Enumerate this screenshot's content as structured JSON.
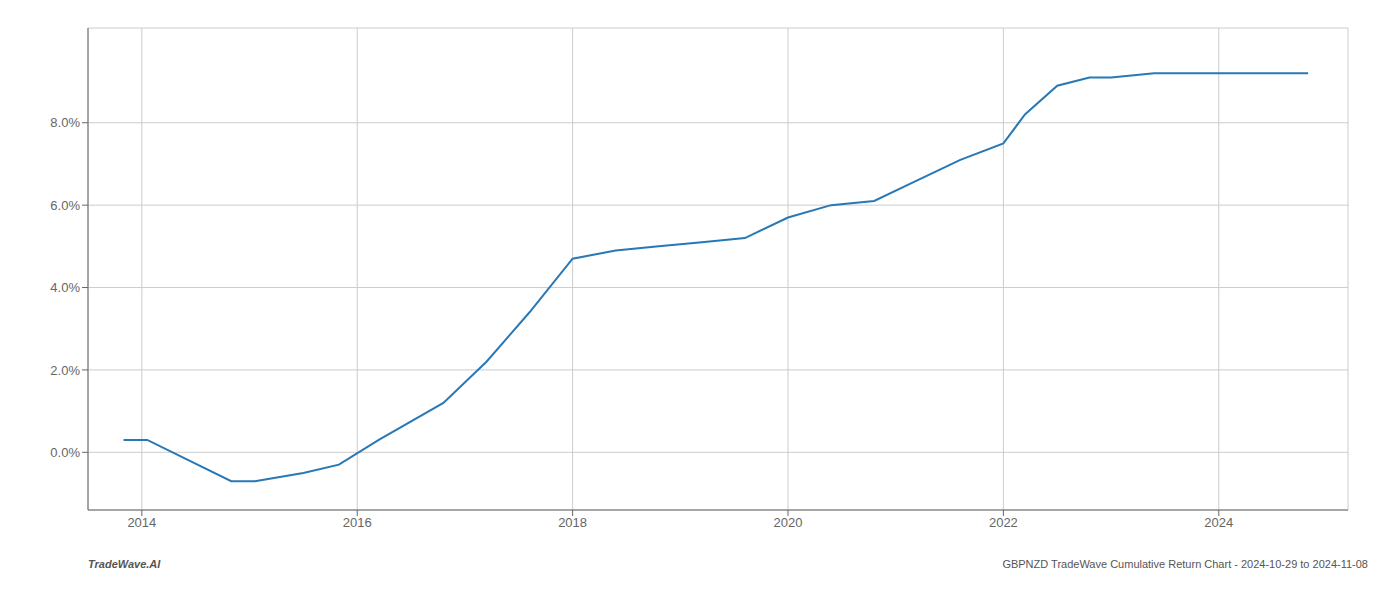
{
  "chart_data": {
    "type": "line",
    "x": [
      2013.83,
      2014.05,
      2014.83,
      2015.05,
      2015.5,
      2015.83,
      2016.2,
      2016.8,
      2017.2,
      2017.6,
      2018.0,
      2018.4,
      2018.8,
      2019.2,
      2019.6,
      2020.0,
      2020.4,
      2020.8,
      2021.2,
      2021.6,
      2022.0,
      2022.2,
      2022.5,
      2022.8,
      2023.0,
      2023.4,
      2023.8,
      2024.2,
      2024.83
    ],
    "values": [
      0.003,
      0.003,
      -0.007,
      -0.007,
      -0.005,
      -0.003,
      0.003,
      0.012,
      0.022,
      0.034,
      0.047,
      0.049,
      0.05,
      0.051,
      0.052,
      0.057,
      0.06,
      0.061,
      0.066,
      0.071,
      0.075,
      0.082,
      0.089,
      0.091,
      0.091,
      0.092,
      0.092,
      0.092,
      0.092
    ],
    "color": "#2878b5",
    "xlim": [
      2013.5,
      2025.2
    ],
    "ylim": [
      -0.014,
      0.103
    ],
    "xticks": [
      2014,
      2016,
      2018,
      2020,
      2022,
      2024
    ],
    "yticks": [
      {
        "value": 0.0,
        "label": "0.0%"
      },
      {
        "value": 0.02,
        "label": "2.0%"
      },
      {
        "value": 0.04,
        "label": "4.0%"
      },
      {
        "value": 0.06,
        "label": "6.0%"
      },
      {
        "value": 0.08,
        "label": "8.0%"
      }
    ],
    "grid": true,
    "annotations": [
      "TradeWave.AI",
      "GBPNZD TradeWave Cumulative Return Chart - 2024-10-29 to 2024-11-08"
    ]
  }
}
